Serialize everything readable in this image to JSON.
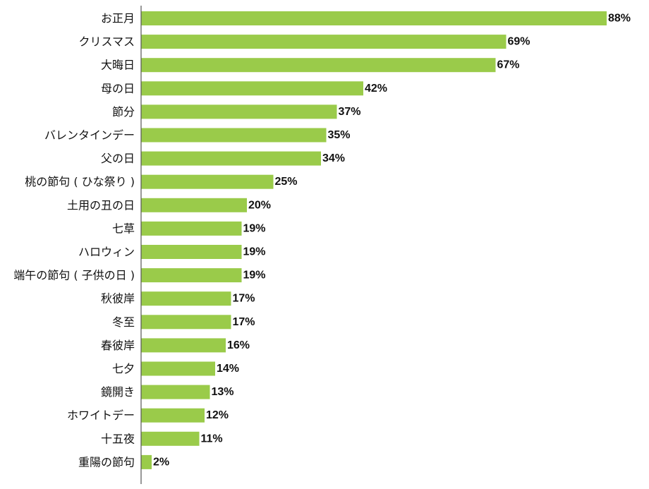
{
  "chart_data": {
    "type": "bar",
    "orientation": "horizontal",
    "title": "",
    "xlabel": "",
    "ylabel": "",
    "xlim": [
      0,
      100
    ],
    "value_suffix": "%",
    "grid": false,
    "legend": "none",
    "bar_color": "#9ACB4A",
    "axis_color": "#555555",
    "categories": [
      "お正月",
      "クリスマス",
      "大晦日",
      "母の日",
      "節分",
      "バレンタインデー",
      "父の日",
      "桃の節句 ( ひな祭り )",
      "土用の丑の日",
      "七草",
      "ハロウィン",
      "端午の節句 ( 子供の日 )",
      "秋彼岸",
      "冬至",
      "春彼岸",
      "七夕",
      "鏡開き",
      "ホワイトデー",
      "十五夜",
      "重陽の節句"
    ],
    "values": [
      88,
      69,
      67,
      42,
      37,
      35,
      34,
      25,
      20,
      19,
      19,
      19,
      17,
      17,
      16,
      14,
      13,
      12,
      11,
      2
    ],
    "value_labels": [
      "88%",
      "69%",
      "67%",
      "42%",
      "37%",
      "35%",
      "34%",
      "25%",
      "20%",
      "19%",
      "19%",
      "19%",
      "17%",
      "17%",
      "16%",
      "14%",
      "13%",
      "12%",
      "11%",
      "2%"
    ]
  }
}
